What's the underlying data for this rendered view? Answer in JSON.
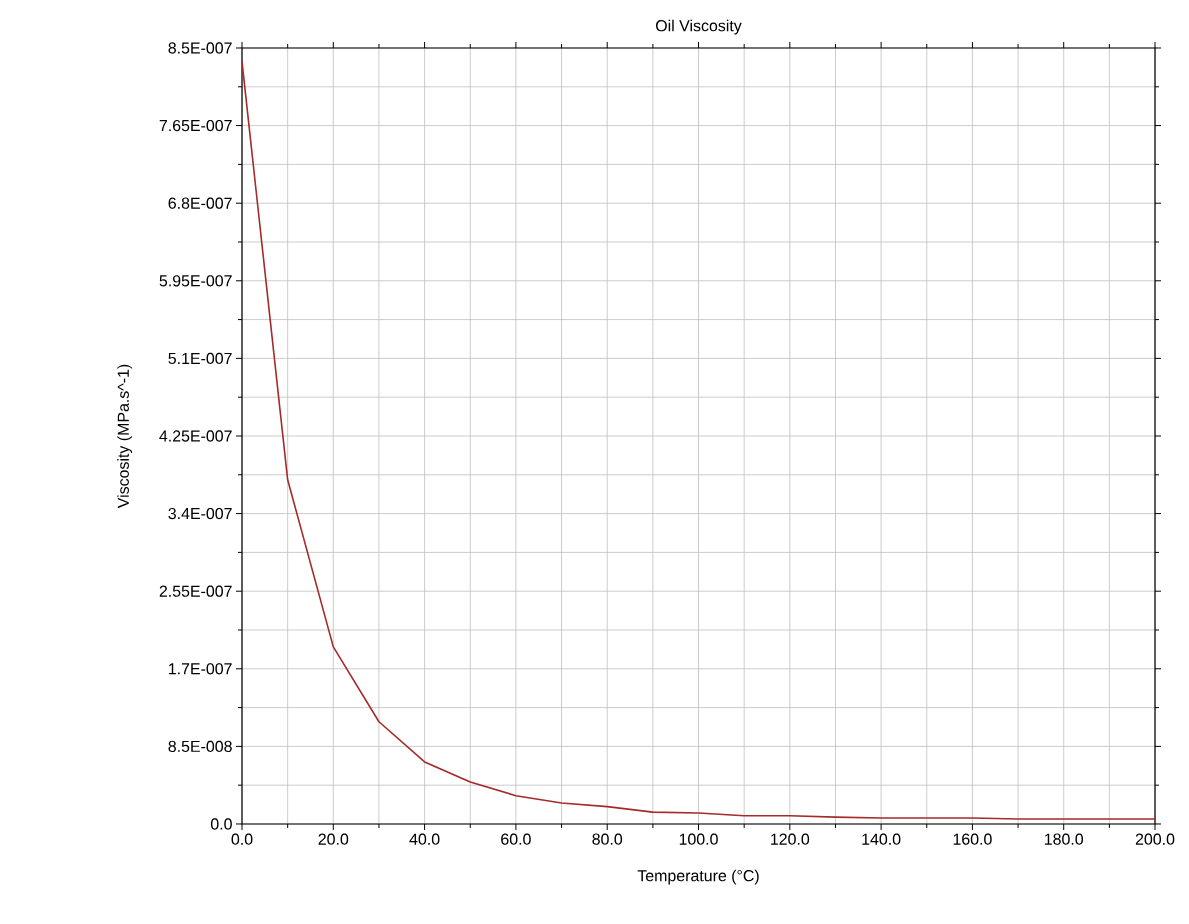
{
  "chart_data": {
    "type": "line",
    "title": "Oil Viscosity",
    "xlabel": "Temperature (°C)",
    "ylabel": "Viscosity (MPa.s^-1)",
    "x": [
      0,
      10,
      20,
      30,
      40,
      50,
      60,
      70,
      80,
      90,
      100,
      110,
      120,
      130,
      140,
      150,
      160,
      170,
      180,
      190,
      200
    ],
    "series": [
      {
        "color": "#a52a2a",
        "values": [
          8.35e-07,
          3.77e-07,
          1.94e-07,
          1.12e-07,
          6.8e-08,
          4.6e-08,
          3.1e-08,
          2.3e-08,
          1.9e-08,
          1.3e-08,
          1.2e-08,
          9e-09,
          9e-09,
          7.5e-09,
          6.5e-09,
          6.5e-09,
          6.5e-09,
          5.5e-09,
          5.5e-09,
          5.5e-09,
          5.5e-09
        ]
      }
    ],
    "xlim": [
      0,
      200
    ],
    "ylim": [
      0,
      8.5e-07
    ],
    "xticks": [
      {
        "value": 0,
        "label": "0.0"
      },
      {
        "value": 20,
        "label": "20.0"
      },
      {
        "value": 40,
        "label": "40.0"
      },
      {
        "value": 60,
        "label": "60.0"
      },
      {
        "value": 80,
        "label": "80.0"
      },
      {
        "value": 100,
        "label": "100.0"
      },
      {
        "value": 120,
        "label": "120.0"
      },
      {
        "value": 140,
        "label": "140.0"
      },
      {
        "value": 160,
        "label": "160.0"
      },
      {
        "value": 180,
        "label": "180.0"
      },
      {
        "value": 200,
        "label": "200.0"
      }
    ],
    "yticks": [
      {
        "value": 0,
        "label": "0.0"
      },
      {
        "value": 8.5e-08,
        "label": "8.5E-008"
      },
      {
        "value": 1.7e-07,
        "label": "1.7E-007"
      },
      {
        "value": 2.55e-07,
        "label": "2.55E-007"
      },
      {
        "value": 3.4e-07,
        "label": "3.4E-007"
      },
      {
        "value": 4.25e-07,
        "label": "4.25E-007"
      },
      {
        "value": 5.1e-07,
        "label": "5.1E-007"
      },
      {
        "value": 5.95e-07,
        "label": "5.95E-007"
      },
      {
        "value": 6.8e-07,
        "label": "6.8E-007"
      },
      {
        "value": 7.65e-07,
        "label": "7.65E-007"
      },
      {
        "value": 8.5e-07,
        "label": "8.5E-007"
      }
    ],
    "grid": true,
    "marker": "none",
    "line_style": "solid"
  }
}
